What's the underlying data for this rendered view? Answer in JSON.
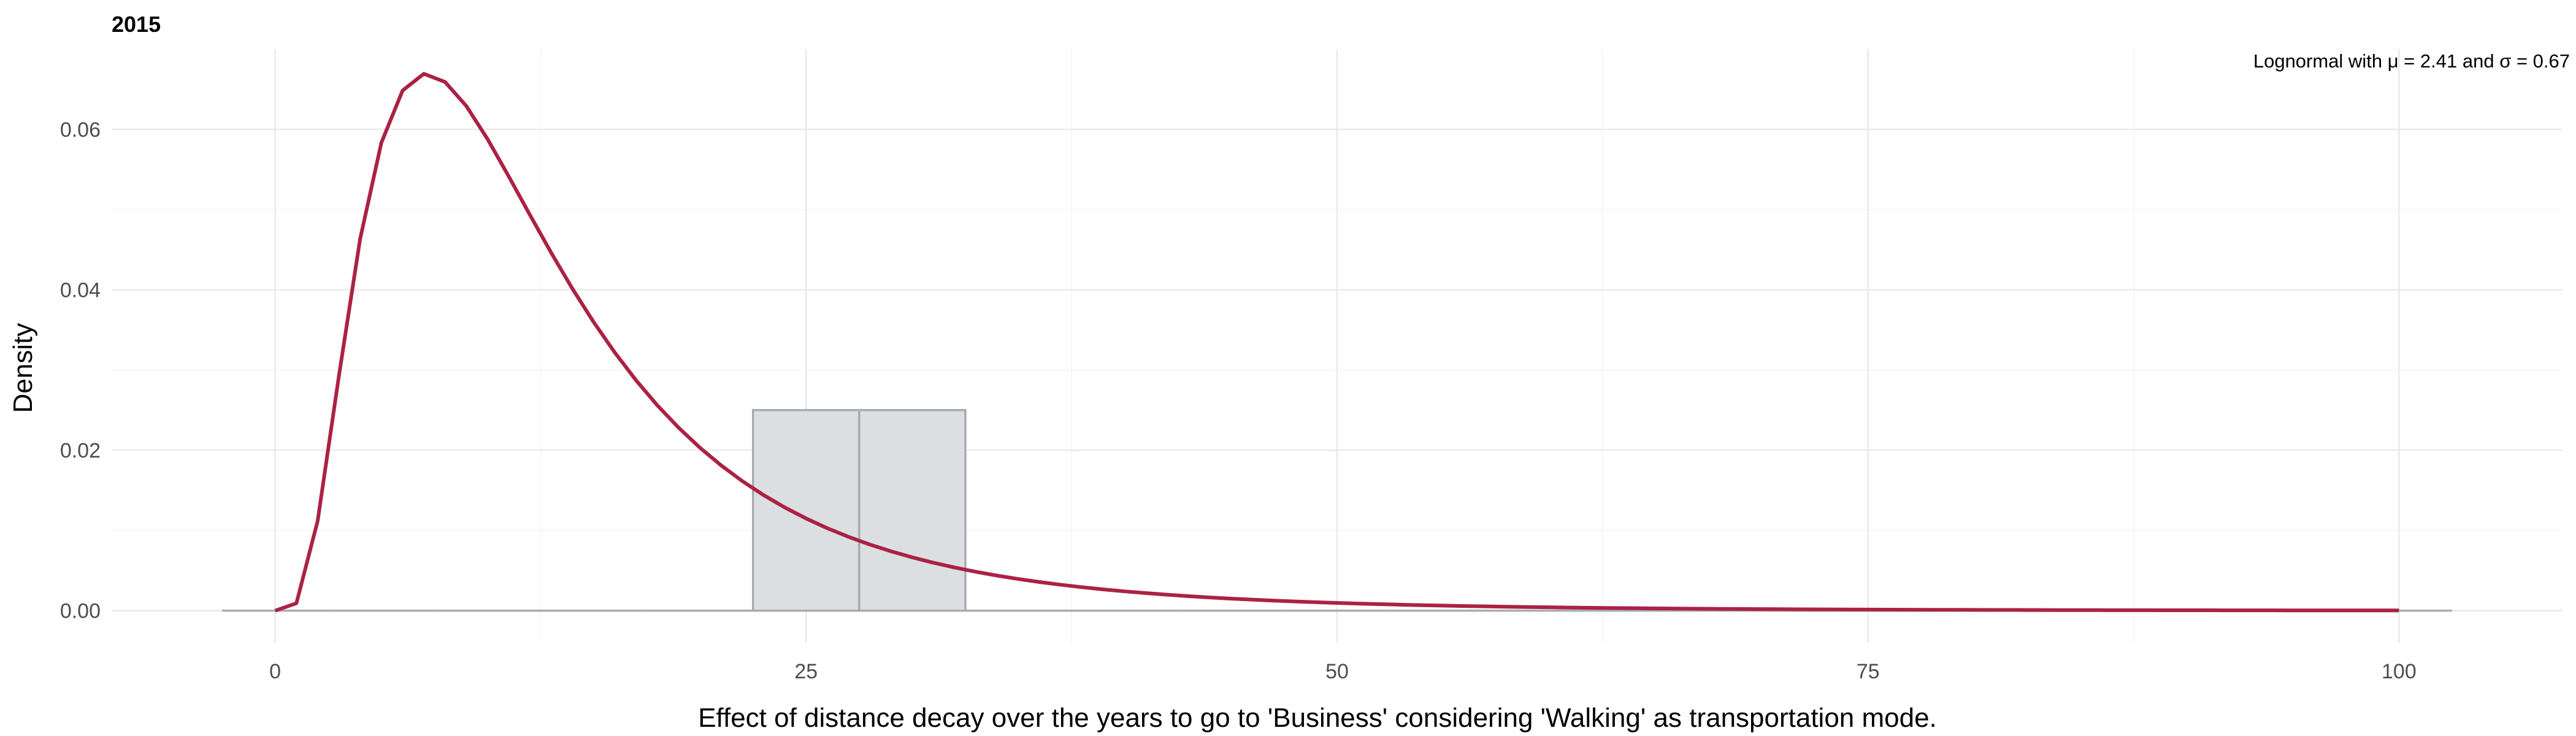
{
  "chart_data": {
    "type": "histogram_with_density",
    "panel_title": "2015",
    "title": "",
    "xlabel": "Effect of distance decay over the years to go to 'Business' considering 'Walking' as transportation mode.",
    "ylabel": "Density",
    "xlim": [
      -7.7,
      107.7
    ],
    "ylim": [
      -0.004,
      0.07
    ],
    "x_ticks": [
      0,
      25,
      50,
      75,
      100
    ],
    "x_tick_labels": [
      "0",
      "25",
      "50",
      "75",
      "100"
    ],
    "y_ticks": [
      0.0,
      0.02,
      0.04,
      0.06
    ],
    "y_tick_labels": [
      "0.00",
      "0.02",
      "0.04",
      "0.06"
    ],
    "grid": true,
    "histogram": {
      "bin_width": 5,
      "bin_centers": [
        0,
        5,
        10,
        15,
        20,
        25,
        30,
        35,
        40,
        45,
        50,
        55,
        60,
        65,
        70,
        75,
        80,
        85,
        90,
        95,
        100
      ],
      "densities": [
        0,
        0,
        0,
        0,
        0,
        0.025,
        0.025,
        0,
        0,
        0,
        0,
        0,
        0,
        0,
        0,
        0,
        0,
        0,
        0,
        0,
        0
      ],
      "fill_color": "#dcdfe2",
      "outline_color": "#a9acae"
    },
    "fit": {
      "distribution": "lognormal",
      "meanlog": 2.41,
      "sdlog": 0.67,
      "x_range": [
        0,
        100
      ],
      "color": "#ab2244"
    },
    "annotation": {
      "text_before_mu": "Lognormal with ",
      "mu_symbol": "μ",
      "text_mu_value": " = 2.41 and ",
      "sigma_symbol": "σ",
      "text_sigma_value": " = 0.67",
      "placement": "top-right"
    }
  }
}
